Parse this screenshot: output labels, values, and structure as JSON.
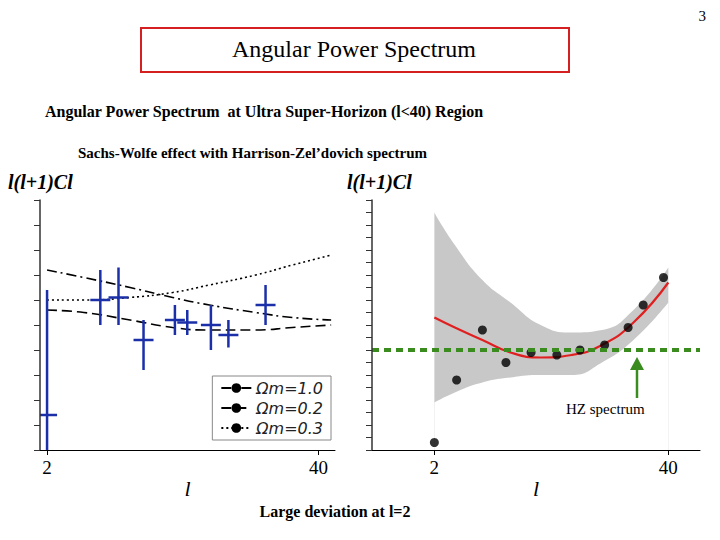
{
  "slide": {
    "page_number": "3",
    "title": "Angular Power Spectrum",
    "subtitle": "Angular Power Spectrum  at Ultra Super-Horizon (l<40) Region",
    "subtitle2": "Sachs-Wolfe effect with Harrison-Zel’dovich spectrum",
    "note": "Large deviation at l=2"
  },
  "chart_data": [
    {
      "type": "line",
      "ylabel": "l(l+1)Cl",
      "xlabel": "l",
      "log": "x",
      "xlim": [
        1.85,
        48
      ],
      "xticks": [
        2,
        40
      ],
      "ylim": [
        0,
        10
      ],
      "yticks": [
        0,
        1,
        2,
        3,
        4,
        5,
        6,
        7,
        8,
        9,
        10
      ],
      "tick_labels": "x",
      "grid": false,
      "legend": "lower right",
      "series": [
        {
          "name": "Ωm=1.0",
          "type": "line",
          "color": "#000000",
          "line_style": "dashdot",
          "x": [
            2,
            3,
            5,
            8,
            12,
            20,
            30,
            46
          ],
          "values": [
            7.2,
            6.9,
            6.5,
            6.1,
            5.8,
            5.5,
            5.3,
            5.2
          ]
        },
        {
          "name": "Ωm=0.2",
          "type": "line",
          "color": "#000000",
          "line_style": "dashed",
          "x": [
            2,
            3,
            5,
            8,
            12,
            20,
            30,
            46
          ],
          "values": [
            5.6,
            5.5,
            5.2,
            4.9,
            4.8,
            4.8,
            4.9,
            5.0
          ]
        },
        {
          "name": "Ωm=0.3",
          "type": "line",
          "color": "#000000",
          "line_style": "dotted",
          "x": [
            2,
            3,
            5,
            8,
            12,
            20,
            30,
            46
          ],
          "values": [
            6.0,
            6.0,
            6.1,
            6.3,
            6.6,
            7.0,
            7.4,
            7.8
          ]
        },
        {
          "type": "errorbar",
          "color": "#1a2fa8",
          "x": [
            2,
            3.6,
            4.4,
            5.8,
            8.2,
            9.4,
            12.2,
            14.8,
            22.3
          ],
          "values": [
            1.4,
            6.0,
            6.1,
            4.4,
            5.2,
            5.1,
            5.0,
            4.6,
            5.8
          ],
          "low": [
            0,
            5.0,
            5.0,
            3.2,
            4.6,
            4.6,
            4.0,
            4.1,
            5.0
          ],
          "high": [
            6.4,
            7.2,
            7.3,
            5.2,
            5.8,
            5.6,
            5.8,
            5.2,
            6.6
          ]
        }
      ]
    },
    {
      "type": "scatter",
      "ylabel": "l(l+1)Cl",
      "xlabel": "l",
      "log": "x",
      "xlim": [
        0.9,
        60
      ],
      "xticks": [
        2,
        40
      ],
      "ylim": [
        0,
        10
      ],
      "yticks": [
        0,
        0.5,
        1,
        1.5,
        2,
        2.5,
        3,
        3.5,
        4,
        4.5,
        5,
        5.5,
        6,
        6.5,
        7,
        7.5,
        8,
        8.5,
        9,
        9.5,
        10
      ],
      "tick_labels": "x",
      "grid": false,
      "series": [
        {
          "type": "band",
          "color": "#c8c8c8",
          "x": [
            2,
            2.6,
            3.7,
            5.3,
            7.8,
            11.6,
            17.1,
            25.6,
            40
          ],
          "lower": [
            1.9,
            2.3,
            2.7,
            2.9,
            3.0,
            3.0,
            3.5,
            4.4,
            5.9
          ],
          "upper": [
            9.5,
            8.2,
            6.8,
            5.9,
            5.0,
            4.7,
            4.8,
            5.6,
            7.3
          ]
        },
        {
          "type": "line",
          "color": "#e02020",
          "line_style": "solid",
          "x": [
            2,
            2.6,
            3.7,
            5.3,
            7.8,
            11.6,
            17.1,
            25.6,
            40
          ],
          "values": [
            5.3,
            4.9,
            4.4,
            3.9,
            3.7,
            3.8,
            4.2,
            5.1,
            6.7
          ]
        },
        {
          "type": "scatter",
          "color": "#000000",
          "marker": "circle",
          "x": [
            2,
            2.66,
            3.7,
            5.0,
            6.9,
            9.6,
            12.9,
            17.7,
            23.9,
            29,
            37.6
          ],
          "values": [
            0.3,
            2.8,
            4.8,
            3.5,
            3.9,
            3.8,
            4.0,
            4.2,
            4.9,
            5.8,
            6.9
          ]
        }
      ],
      "reference_line": {
        "value": 4.0,
        "label": "HZ spectrum",
        "color": "#3a8c1e",
        "line_style": "dashed"
      }
    }
  ]
}
